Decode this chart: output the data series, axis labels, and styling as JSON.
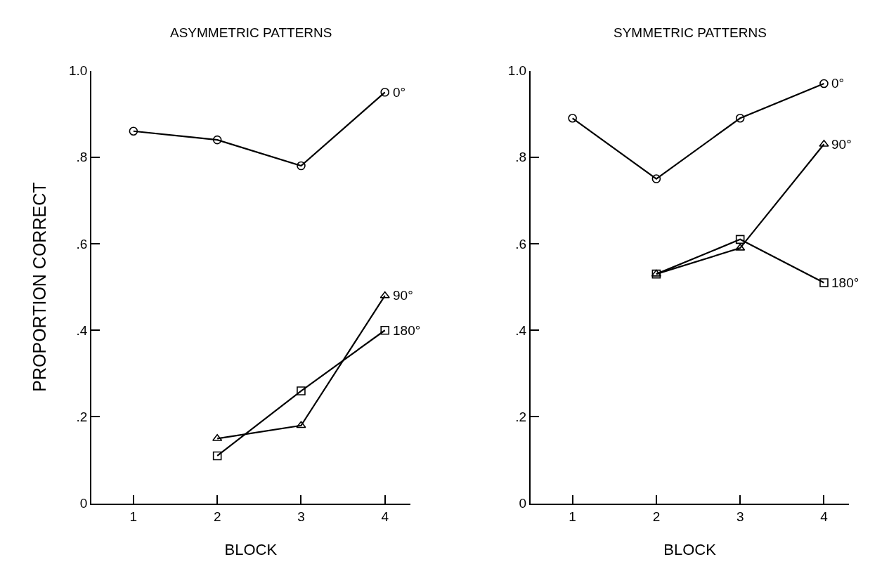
{
  "chart_data": [
    {
      "type": "line",
      "title": "ASYMMETRIC PATTERNS",
      "xlabel": "BLOCK",
      "ylabel": "PROPORTION CORRECT",
      "x": [
        1,
        2,
        3,
        4
      ],
      "xlim": [
        0.5,
        4.3
      ],
      "xticks": [
        1,
        2,
        3,
        4
      ],
      "ylim": [
        0,
        1.0
      ],
      "yticks": [
        0,
        {
          "value": 0.2,
          "label": ".2"
        },
        {
          "value": 0.4,
          "label": ".4"
        },
        {
          "value": 0.6,
          "label": ".6"
        },
        {
          "value": 0.8,
          "label": ".8"
        },
        {
          "value": 1.0,
          "label": "1.0"
        }
      ],
      "line_style": "solid",
      "series": [
        {
          "name": "0°",
          "color": "#000000",
          "marker": "circle",
          "values": [
            0.86,
            0.84,
            0.78,
            0.95
          ]
        },
        {
          "name": "90°",
          "color": "#000000",
          "marker": "triangle",
          "values": [
            null,
            0.15,
            0.18,
            0.48
          ]
        },
        {
          "name": "180°",
          "color": "#000000",
          "marker": "square",
          "values": [
            null,
            0.11,
            0.26,
            0.4
          ]
        }
      ]
    },
    {
      "type": "line",
      "title": "SYMMETRIC PATTERNS",
      "xlabel": "BLOCK",
      "x": [
        1,
        2,
        3,
        4
      ],
      "xlim": [
        0.5,
        4.3
      ],
      "xticks": [
        1,
        2,
        3,
        4
      ],
      "ylim": [
        0,
        1.0
      ],
      "yticks": [
        0,
        {
          "value": 0.2,
          "label": ".2"
        },
        {
          "value": 0.4,
          "label": ".4"
        },
        {
          "value": 0.6,
          "label": ".6"
        },
        {
          "value": 0.8,
          "label": ".8"
        },
        {
          "value": 1.0,
          "label": "1.0"
        }
      ],
      "line_style": "solid",
      "series": [
        {
          "name": "0°",
          "color": "#000000",
          "marker": "circle",
          "values": [
            0.89,
            0.75,
            0.89,
            0.97
          ]
        },
        {
          "name": "90°",
          "color": "#000000",
          "marker": "triangle",
          "values": [
            null,
            0.53,
            0.59,
            0.83
          ]
        },
        {
          "name": "180°",
          "color": "#000000",
          "marker": "square",
          "values": [
            null,
            0.53,
            0.61,
            0.51
          ]
        }
      ]
    }
  ]
}
